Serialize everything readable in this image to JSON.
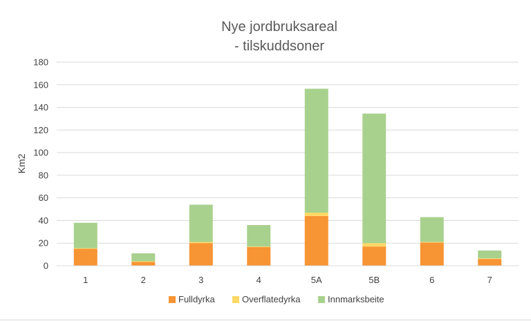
{
  "chart_data": {
    "type": "bar",
    "stacked": true,
    "title_line1": "Nye jordbruksareal",
    "title_line2": "- tilskuddsoner",
    "ylabel": "Km2",
    "xlabel": "",
    "ylim": [
      0,
      180
    ],
    "yticks": [
      0,
      20,
      40,
      60,
      80,
      100,
      120,
      140,
      160,
      180
    ],
    "grid": true,
    "legend_position": "bottom",
    "categories": [
      "1",
      "2",
      "3",
      "4",
      "5A",
      "5B",
      "6",
      "7"
    ],
    "series": [
      {
        "name": "Fulldyrka",
        "color": "#F79433",
        "values": [
          15,
          3.5,
          20,
          16.5,
          44,
          17,
          20.5,
          6
        ]
      },
      {
        "name": "Overflatedyrka",
        "color": "#FFD966",
        "values": [
          0.5,
          0.5,
          1,
          0.5,
          3,
          3,
          0.5,
          0.5
        ]
      },
      {
        "name": "Innmarksbeite",
        "color": "#A9D18E",
        "values": [
          22.5,
          7,
          33,
          19,
          109.5,
          114.5,
          22,
          7
        ]
      }
    ]
  }
}
